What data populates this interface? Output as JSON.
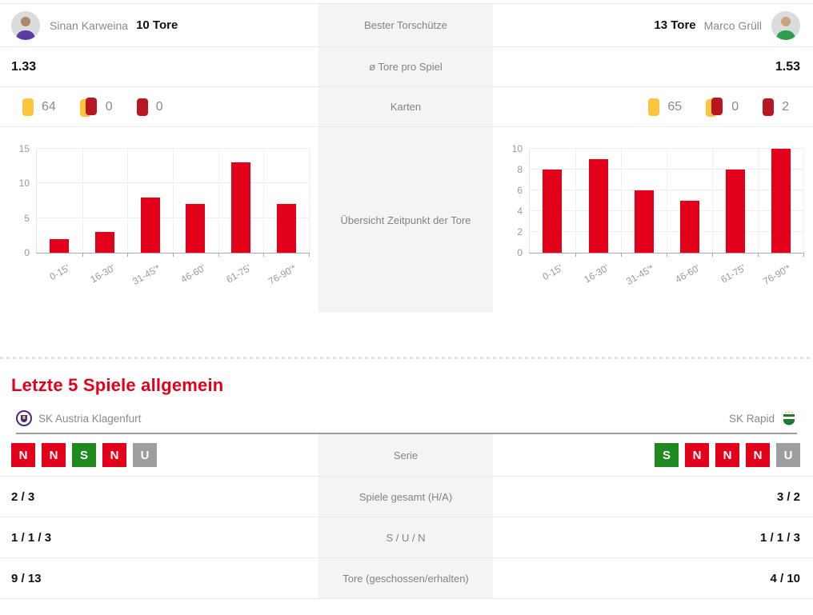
{
  "colors": {
    "accent_red": "#e2001a",
    "bar_red": "#e2001a",
    "badge_green": "#1f8a1f",
    "badge_gray": "#9e9e9e",
    "card_yellow": "#fbc540",
    "card_red": "#b81623",
    "center_bg": "#f4f4f4"
  },
  "top": {
    "center_labels": {
      "best_scorer": "Bester Torschütze",
      "avg_goals": "ø Tore pro Spiel",
      "cards": "Karten",
      "goal_times": "Übersicht Zeitpunkt der Tore"
    },
    "home": {
      "top_scorer_name": "Sinan Karweina",
      "top_scorer_goals": "10 Tore",
      "avg_goals": "1.33",
      "cards": {
        "yellow": "64",
        "yellow_red": "0",
        "red": "0"
      }
    },
    "away": {
      "top_scorer_name": "Marco Grüll",
      "top_scorer_goals": "13 Tore",
      "avg_goals": "1.53",
      "cards": {
        "yellow": "65",
        "yellow_red": "0",
        "red": "2"
      }
    }
  },
  "chart_data": [
    {
      "type": "bar",
      "side": "home",
      "title": "Übersicht Zeitpunkt der Tore",
      "categories": [
        "0-15'",
        "16-30'",
        "31-45'*",
        "46-60'",
        "61-75'",
        "76-90'*"
      ],
      "values": [
        2,
        3,
        8,
        7,
        13,
        7
      ],
      "ylim": [
        0,
        15
      ],
      "yticks": [
        0,
        5,
        10,
        15
      ],
      "bar_color": "#e2001a",
      "grid": true,
      "legend": "none"
    },
    {
      "type": "bar",
      "side": "away",
      "title": "Übersicht Zeitpunkt der Tore",
      "categories": [
        "0-15'",
        "16-30'",
        "31-45'*",
        "46-60'",
        "61-75'",
        "76-90'*"
      ],
      "values": [
        8,
        9,
        6,
        5,
        8,
        10
      ],
      "ylim": [
        0,
        10
      ],
      "yticks": [
        0,
        2,
        4,
        6,
        8,
        10
      ],
      "bar_color": "#e2001a",
      "grid": true,
      "legend": "none"
    }
  ],
  "last5": {
    "heading": "Letzte 5 Spiele allgemein",
    "home_team": "SK Austria Klagenfurt",
    "away_team": "SK Rapid",
    "rows": {
      "serie": {
        "label": "Serie",
        "home": [
          {
            "letter": "N",
            "result": "loss"
          },
          {
            "letter": "N",
            "result": "loss"
          },
          {
            "letter": "S",
            "result": "win"
          },
          {
            "letter": "N",
            "result": "loss"
          },
          {
            "letter": "U",
            "result": "draw"
          }
        ],
        "away": [
          {
            "letter": "S",
            "result": "win"
          },
          {
            "letter": "N",
            "result": "loss"
          },
          {
            "letter": "N",
            "result": "loss"
          },
          {
            "letter": "N",
            "result": "loss"
          },
          {
            "letter": "U",
            "result": "draw"
          }
        ]
      },
      "games": {
        "label": "Spiele gesamt (H/A)",
        "home": "2 / 3",
        "away": "3 / 2"
      },
      "sun": {
        "label": "S / U / N",
        "home": "1 / 1 / 3",
        "away": "1 / 1 / 3"
      },
      "goals": {
        "label": "Tore (geschossen/erhalten)",
        "home": "9 / 13",
        "away": "4 / 10"
      }
    }
  }
}
